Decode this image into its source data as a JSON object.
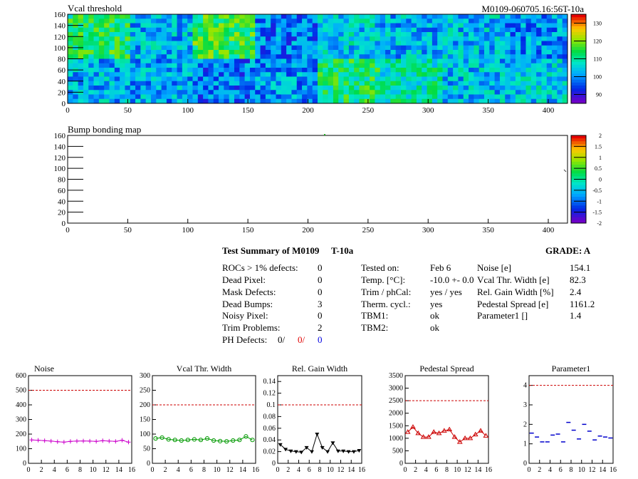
{
  "module_tag": "M0109-060705.16:56T-10a",
  "vcal_map": {
    "title": "Vcal threshold",
    "x_ticks": [
      "0",
      "50",
      "100",
      "150",
      "200",
      "250",
      "300",
      "350",
      "400"
    ],
    "y_ticks": [
      "0",
      "20",
      "40",
      "60",
      "80",
      "100",
      "120",
      "140",
      "160"
    ],
    "palette_ticks": [
      "90",
      "100",
      "110",
      "120",
      "130"
    ],
    "x_range": [
      0,
      416
    ],
    "y_range": [
      0,
      160
    ],
    "z_range": [
      85,
      135
    ],
    "roc_columns": 8,
    "top_row_levels": [
      113,
      102,
      115,
      98,
      104,
      102,
      103,
      100
    ],
    "bottom_row_levels": [
      102,
      101,
      98,
      100,
      112,
      108,
      103,
      104
    ]
  },
  "bump_map": {
    "title": "Bump bonding map",
    "x_ticks": [
      "0",
      "50",
      "100",
      "150",
      "200",
      "250",
      "300",
      "350",
      "400"
    ],
    "y_ticks": [
      "0",
      "20",
      "40",
      "60",
      "80",
      "100",
      "120",
      "140",
      "160"
    ],
    "palette_ticks": [
      "-2",
      "-1.5",
      "-1",
      "-0.5",
      "0",
      "0.5",
      "1",
      "1.5",
      "2"
    ],
    "x_range": [
      0,
      416
    ],
    "y_range": [
      0,
      160
    ]
  },
  "summary": {
    "title": "Test Summary of M0109",
    "temp_tag": "T-10a",
    "grade": "GRADE:  A",
    "defects": [
      {
        "label": "ROCs > 1% defects:",
        "value": "0"
      },
      {
        "label": "Dead Pixel:",
        "value": "0"
      },
      {
        "label": "Mask Defects:",
        "value": "0"
      },
      {
        "label": "Dead Bumps:",
        "value": "3"
      },
      {
        "label": "Noisy Pixel:",
        "value": "0"
      },
      {
        "label": "Trim Problems:",
        "value": "2"
      }
    ],
    "ph_defects": {
      "label": "PH Defects:",
      "v1": "0/",
      "v2": "0/",
      "v3": "0"
    },
    "conditions": [
      {
        "label": "Tested on:",
        "value": "Feb 6"
      },
      {
        "label": "Temp. [°C]:",
        "value": "-10.0 +- 0.0"
      },
      {
        "label": "Trim / phCal:",
        "value": "yes / yes"
      },
      {
        "label": "Therm. cycl.:",
        "value": "yes"
      },
      {
        "label": "TBM1:",
        "value": "ok"
      },
      {
        "label": "TBM2:",
        "value": "ok"
      }
    ],
    "params": [
      {
        "label": "Noise [e]",
        "value": "154.1"
      },
      {
        "label": "Vcal Thr. Width [e]",
        "value": "82.3"
      },
      {
        "label": "Rel. Gain Width [%]",
        "value": "2.4"
      },
      {
        "label": "Pedestal Spread [e]",
        "value": "1161.2"
      },
      {
        "label": "Parameter1 []",
        "value": "1.4"
      }
    ]
  },
  "chart_data": [
    {
      "type": "line",
      "title": "Noise",
      "color": "#cc00cc",
      "marker": "cross",
      "x": [
        0,
        1,
        2,
        3,
        4,
        5,
        6,
        7,
        8,
        9,
        10,
        11,
        12,
        13,
        14,
        15
      ],
      "values": [
        160,
        158,
        155,
        152,
        148,
        145,
        150,
        152,
        153,
        152,
        150,
        155,
        152,
        150,
        158,
        145
      ],
      "ylim": [
        0,
        600
      ],
      "yticks": [
        "0",
        "100",
        "200",
        "300",
        "400",
        "500",
        "600"
      ],
      "xticks": [
        "0",
        "2",
        "4",
        "6",
        "8",
        "10",
        "12",
        "14",
        "16"
      ],
      "xlim": [
        0,
        16
      ],
      "limit": 500
    },
    {
      "type": "line",
      "title": "Vcal Thr. Width",
      "color": "#009900",
      "marker": "circle",
      "x": [
        0,
        1,
        2,
        3,
        4,
        5,
        6,
        7,
        8,
        9,
        10,
        11,
        12,
        13,
        14,
        15
      ],
      "values": [
        85,
        88,
        82,
        80,
        78,
        80,
        82,
        80,
        85,
        78,
        76,
        75,
        78,
        80,
        92,
        80
      ],
      "ylim": [
        0,
        300
      ],
      "yticks": [
        "0",
        "50",
        "100",
        "150",
        "200",
        "250",
        "300"
      ],
      "xticks": [
        "0",
        "2",
        "4",
        "6",
        "8",
        "10",
        "12",
        "14",
        "16"
      ],
      "xlim": [
        0,
        16
      ],
      "limit": 200
    },
    {
      "type": "line",
      "title": "Rel. Gain Width",
      "color": "#000000",
      "marker": "triangle-down",
      "x": [
        0,
        1,
        2,
        3,
        4,
        5,
        6,
        7,
        8,
        9,
        10,
        11,
        12,
        13,
        14,
        15
      ],
      "values": [
        0.032,
        0.024,
        0.021,
        0.02,
        0.019,
        0.027,
        0.02,
        0.05,
        0.027,
        0.02,
        0.035,
        0.021,
        0.021,
        0.02,
        0.02,
        0.022
      ],
      "ylim": [
        0,
        0.15
      ],
      "yticks": [
        "0",
        "0.02",
        "0.04",
        "0.06",
        "0.08",
        "0.1",
        "0.12",
        "0.14"
      ],
      "xticks": [
        "0",
        "2",
        "4",
        "6",
        "8",
        "10",
        "12",
        "14",
        "16"
      ],
      "xlim": [
        0,
        16
      ],
      "limit": 0.1
    },
    {
      "type": "line",
      "title": "Pedestal Spread",
      "color": "#cc0000",
      "marker": "triangle-up",
      "x": [
        0,
        1,
        2,
        3,
        4,
        5,
        6,
        7,
        8,
        9,
        10,
        11,
        12,
        13,
        14,
        15
      ],
      "values": [
        1250,
        1450,
        1200,
        1050,
        1050,
        1250,
        1200,
        1300,
        1350,
        1050,
        850,
        1000,
        1000,
        1150,
        1300,
        1100
      ],
      "ylim": [
        0,
        3500
      ],
      "yticks": [
        "0",
        "500",
        "1000",
        "1500",
        "2000",
        "2500",
        "3000",
        "3500"
      ],
      "xticks": [
        "0",
        "2",
        "4",
        "6",
        "8",
        "10",
        "12",
        "14",
        "16"
      ],
      "xlim": [
        0,
        16
      ],
      "limit": 2500
    },
    {
      "type": "scatter",
      "title": "Parameter1",
      "color": "#0000cc",
      "marker": "hbar",
      "x": [
        0,
        1,
        2,
        3,
        4,
        5,
        6,
        7,
        8,
        9,
        10,
        11,
        12,
        13,
        14,
        15
      ],
      "values": [
        1.55,
        1.35,
        1.1,
        1.1,
        1.45,
        1.5,
        1.1,
        2.1,
        1.7,
        1.25,
        2.0,
        1.65,
        1.2,
        1.4,
        1.35,
        1.3
      ],
      "ylim": [
        0,
        4.5
      ],
      "yticks": [
        "0",
        "1",
        "2",
        "3",
        "4"
      ],
      "xticks": [
        "0",
        "2",
        "4",
        "6",
        "8",
        "10",
        "12",
        "14",
        "16"
      ],
      "xlim": [
        0,
        16
      ],
      "limit": 4
    }
  ]
}
